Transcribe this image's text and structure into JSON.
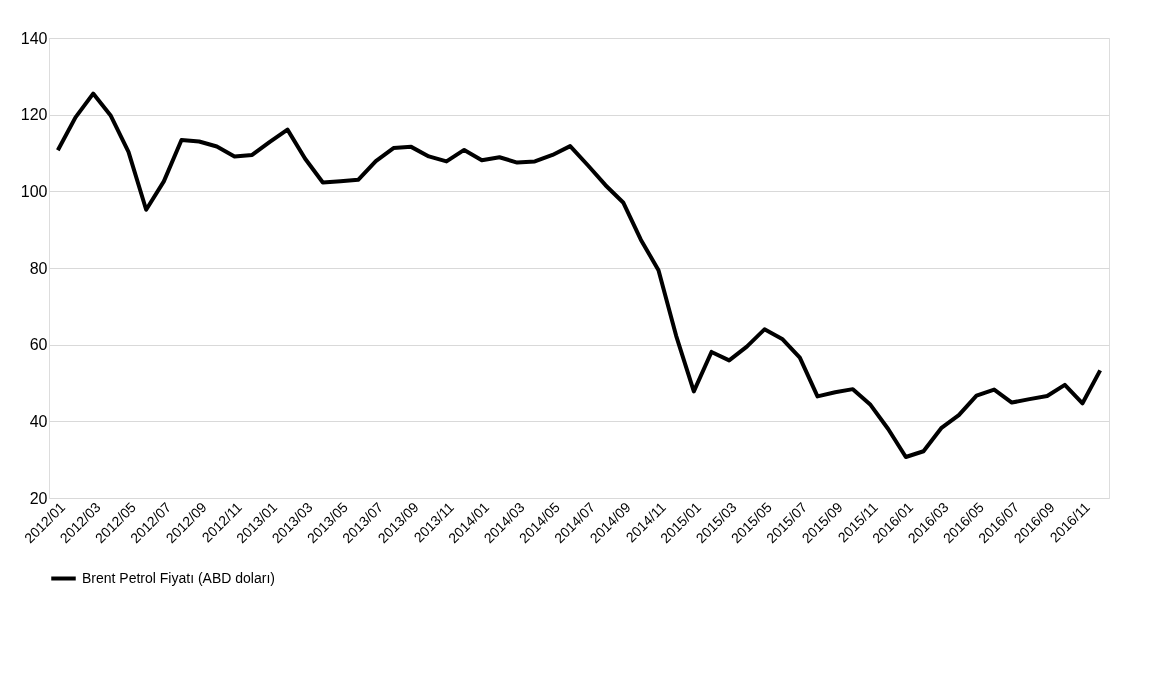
{
  "chart_data": {
    "type": "line",
    "categories": [
      "2012/01",
      null,
      "2012/03",
      null,
      "2012/05",
      null,
      "2012/07",
      null,
      "2012/09",
      null,
      "2012/11",
      null,
      "2013/01",
      null,
      "2013/03",
      null,
      "2013/05",
      null,
      "2013/07",
      null,
      "2013/09",
      null,
      "2013/11",
      null,
      "2014/01",
      null,
      "2014/03",
      null,
      "2014/05",
      null,
      "2014/07",
      null,
      "2014/09",
      null,
      "2014/11",
      null,
      "2015/01",
      null,
      "2015/03",
      null,
      "2015/05",
      null,
      "2015/07",
      null,
      "2015/09",
      null,
      "2015/11",
      null,
      "2016/01",
      null,
      "2016/03",
      null,
      "2016/05",
      null,
      "2016/07",
      null,
      "2016/09",
      null,
      "2016/11",
      null
    ],
    "series": [
      {
        "name": "Brent Petrol Fiyatı (ABD doları)",
        "color": "#000000",
        "values": [
          110.7,
          119.3,
          125.5,
          119.7,
          110.3,
          95.2,
          102.6,
          113.4,
          113.0,
          111.7,
          109.1,
          109.5,
          112.9,
          116.1,
          108.5,
          102.3,
          102.6,
          103.0,
          107.9,
          111.3,
          111.6,
          109.1,
          107.8,
          110.8,
          108.1,
          108.9,
          107.5,
          107.8,
          109.5,
          111.8,
          106.8,
          101.6,
          97.1,
          87.4,
          79.4,
          62.3,
          47.8,
          58.1,
          55.9,
          59.5,
          64.0,
          61.5,
          56.6,
          46.5,
          47.6,
          48.4,
          44.3,
          38.0,
          30.7,
          32.2,
          38.2,
          41.6,
          46.7,
          48.3,
          44.9,
          45.8,
          46.6,
          49.5,
          44.7,
          53.3
        ]
      }
    ],
    "ylim": [
      20,
      140
    ],
    "yticks": [
      20,
      40,
      60,
      80,
      100,
      120,
      140
    ],
    "grid": "y",
    "legend": "bottom",
    "marker": "none",
    "line_style": "solid"
  }
}
